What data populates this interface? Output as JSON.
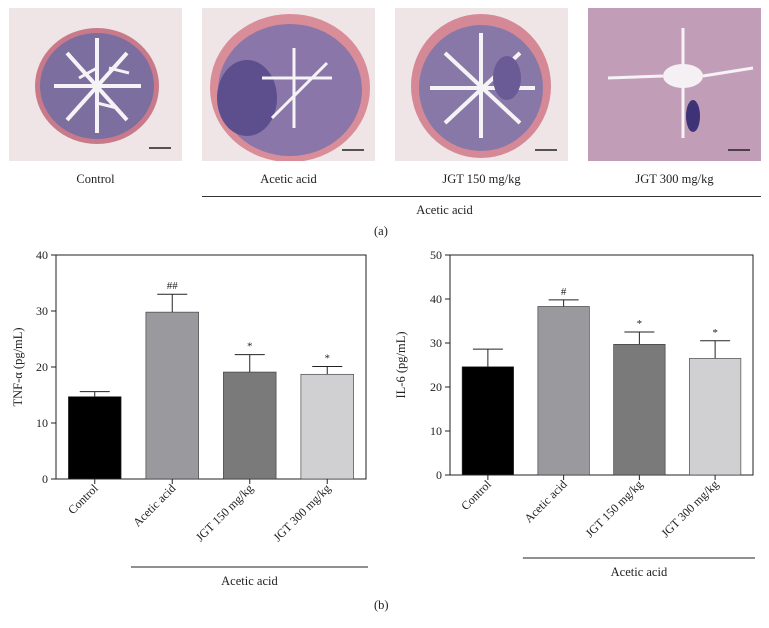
{
  "panel_a": {
    "label": "(a)",
    "images": [
      {
        "caption": "Control"
      },
      {
        "caption": "Acetic acid"
      },
      {
        "caption": "JGT 150 mg/kg"
      },
      {
        "caption": "JGT 300 mg/kg"
      }
    ],
    "group_label": "Acetic acid"
  },
  "panel_b": {
    "label": "(b)"
  },
  "chart_data": [
    {
      "type": "bar",
      "categories": [
        "Control",
        "Acetic acid",
        "JGT 150 mg/kg",
        "JGT 300 mg/kg"
      ],
      "values": [
        14.7,
        29.8,
        19.1,
        18.7
      ],
      "errors": [
        0.9,
        3.2,
        3.1,
        1.4
      ],
      "annotations": [
        "",
        "##",
        "*",
        "*"
      ],
      "colors": [
        "#000000",
        "#9a9a9e",
        "#7a7a7a",
        "#d0d0d2"
      ],
      "ylabel": "TNF-α (pg/mL)",
      "ylim": [
        0,
        40
      ],
      "yticks": [
        0,
        10,
        20,
        30,
        40
      ],
      "group_label": "Acetic acid"
    },
    {
      "type": "bar",
      "categories": [
        "Control",
        "Acetic acid",
        "JGT 150 mg/kg",
        "JGT 300 mg/kg"
      ],
      "values": [
        24.6,
        38.3,
        29.7,
        26.5
      ],
      "errors": [
        4.0,
        1.5,
        2.8,
        4.0
      ],
      "annotations": [
        "",
        "#",
        "*",
        "*"
      ],
      "colors": [
        "#000000",
        "#9a9a9e",
        "#7a7a7a",
        "#d0d0d2"
      ],
      "ylabel": "IL-6 (pg/mL)",
      "ylim": [
        0,
        50
      ],
      "yticks": [
        0,
        10,
        20,
        30,
        40,
        50
      ],
      "group_label": "Acetic acid"
    }
  ]
}
